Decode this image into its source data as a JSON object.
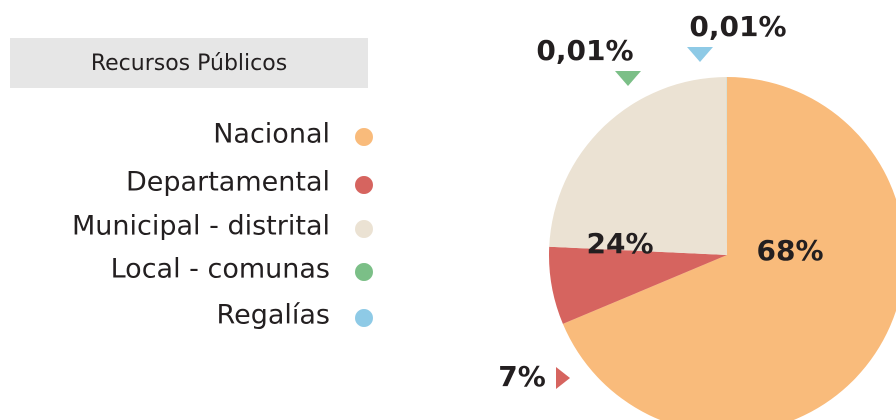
{
  "chart_data": {
    "type": "pie",
    "legend_title": "Recursos Públicos",
    "categories": [
      "Nacional",
      "Departamental",
      "Municipal - distrital",
      "Local - comunas",
      "Regalías"
    ],
    "values": [
      68,
      7,
      24,
      0.01,
      0.01
    ],
    "value_labels": [
      "68%",
      "7%",
      "24%",
      "0,01%",
      "0,01%"
    ],
    "colors": [
      "#f9bb7b",
      "#d6645f",
      "#ebe2d3",
      "#7bbf87",
      "#8ecae6"
    ],
    "legend": "left"
  }
}
